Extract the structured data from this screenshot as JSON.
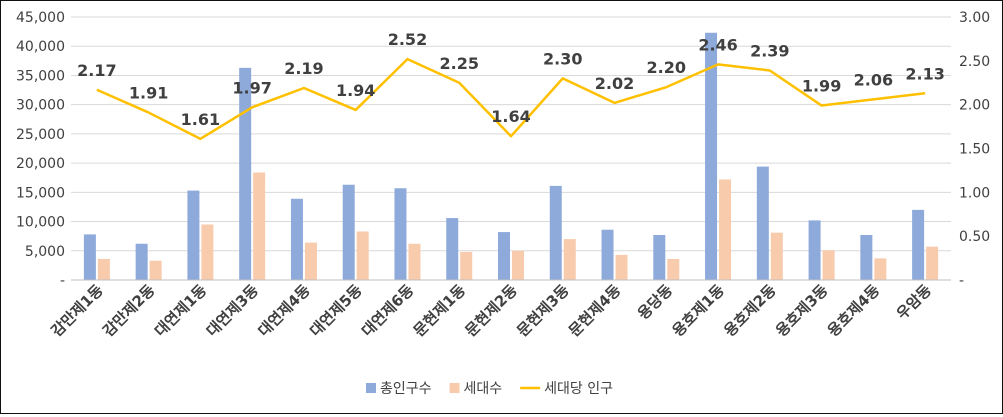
{
  "chart_data": {
    "type": "bar",
    "categories": [
      "감만제1동",
      "감만제2동",
      "대연제1동",
      "대연제3동",
      "대연제4동",
      "대연제5동",
      "대연제6동",
      "문현제1동",
      "문현제2동",
      "문현제3동",
      "문현제4동",
      "용당동",
      "용호제1동",
      "용호제2동",
      "용호제3동",
      "용호제4동",
      "우암동"
    ],
    "series": [
      {
        "name": "총인구수",
        "axis": "left",
        "kind": "bar",
        "color": "#8eaadb",
        "values": [
          7800,
          6200,
          15300,
          36300,
          13900,
          16300,
          15700,
          10600,
          8200,
          16100,
          8600,
          7700,
          42300,
          19400,
          10200,
          7700,
          12000
        ]
      },
      {
        "name": "세대수",
        "axis": "left",
        "kind": "bar",
        "color": "#f8cbad",
        "values": [
          3600,
          3300,
          9500,
          18400,
          6400,
          8300,
          6200,
          4800,
          5000,
          7000,
          4300,
          3600,
          17200,
          8100,
          5100,
          3700,
          5700
        ]
      },
      {
        "name": "세대당 인구",
        "axis": "right",
        "kind": "line",
        "color": "#ffc000",
        "values": [
          2.17,
          1.91,
          1.61,
          1.97,
          2.19,
          1.94,
          2.52,
          2.25,
          1.64,
          2.3,
          2.02,
          2.2,
          2.46,
          2.39,
          1.99,
          2.06,
          2.13
        ],
        "labels": [
          "2.17",
          "1.91",
          "1.61",
          "1.97",
          "2.19",
          "1.94",
          "2.52",
          "2.25",
          "1.64",
          "2.30",
          "2.02",
          "2.20",
          "2.46",
          "2.39",
          "1.99",
          "2.06",
          "2.13"
        ]
      }
    ],
    "y_left": {
      "min": 0,
      "max": 45000,
      "tick_labels": [
        "-",
        "5,000",
        "10,000",
        "15,000",
        "20,000",
        "25,000",
        "30,000",
        "35,000",
        "40,000",
        "45,000"
      ]
    },
    "y_right": {
      "min": 0,
      "max": 3,
      "tick_labels": [
        "-",
        "0.50",
        "1.00",
        "1.50",
        "2.00",
        "2.50",
        "3.00"
      ]
    },
    "grid": true,
    "legend_position": "bottom"
  }
}
